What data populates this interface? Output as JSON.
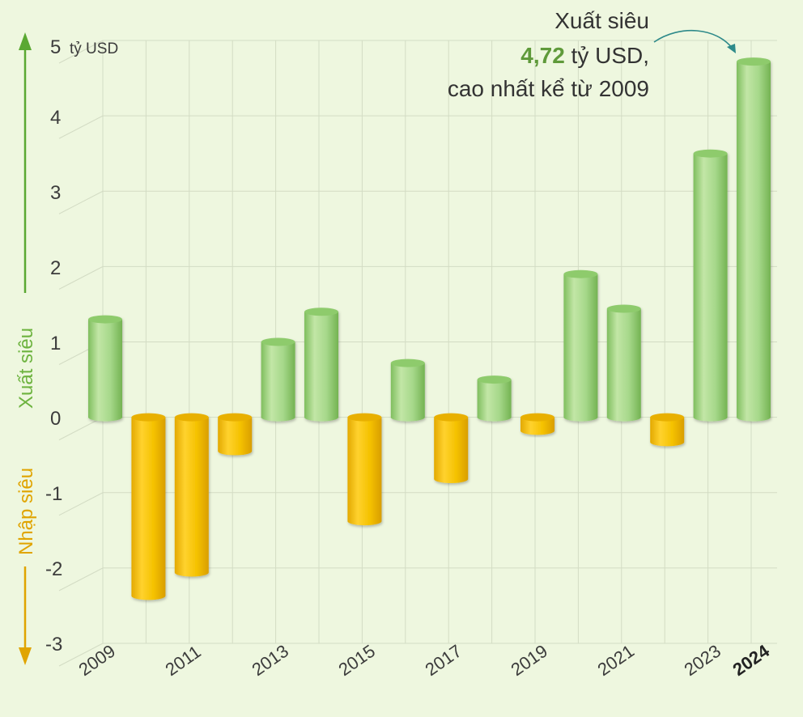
{
  "chart_data": {
    "type": "bar",
    "title": "",
    "xlabel": "",
    "ylabel": "",
    "unit_label": "tỷ USD",
    "ylim": [
      -3,
      5
    ],
    "y_ticks": [
      "5",
      "4",
      "3",
      "2",
      "1",
      "0",
      "-1",
      "-2",
      "-3"
    ],
    "categories": [
      "2009",
      "2010",
      "2011",
      "2012",
      "2013",
      "2014",
      "2015",
      "2016",
      "2017",
      "2018",
      "2019",
      "2020",
      "2021",
      "2022",
      "2023",
      "2024"
    ],
    "x_tick_labels": [
      "2009",
      "2011",
      "2013",
      "2015",
      "2017",
      "2019",
      "2021",
      "2023",
      "2024"
    ],
    "values": [
      1.3,
      -2.37,
      -2.06,
      -0.45,
      1.0,
      1.4,
      -1.38,
      0.72,
      -0.82,
      0.5,
      -0.18,
      1.9,
      1.44,
      -0.33,
      3.5,
      4.72
    ],
    "positive_label": "Xuất siêu",
    "negative_label": "Nhập siêu",
    "annotation": {
      "line1": "Xuất siêu",
      "value": "4,72",
      "line2_rest": " tỷ USD,",
      "line3": "cao nhất kể từ 2009"
    },
    "colors": {
      "positive": "#9ed47e",
      "negative": "#f2bf00",
      "positive_axis": "#5aa832",
      "negative_axis": "#e0a400",
      "annotation_value": "#5f9a3a",
      "arrow": "#2e8a8a"
    },
    "grid": true
  }
}
